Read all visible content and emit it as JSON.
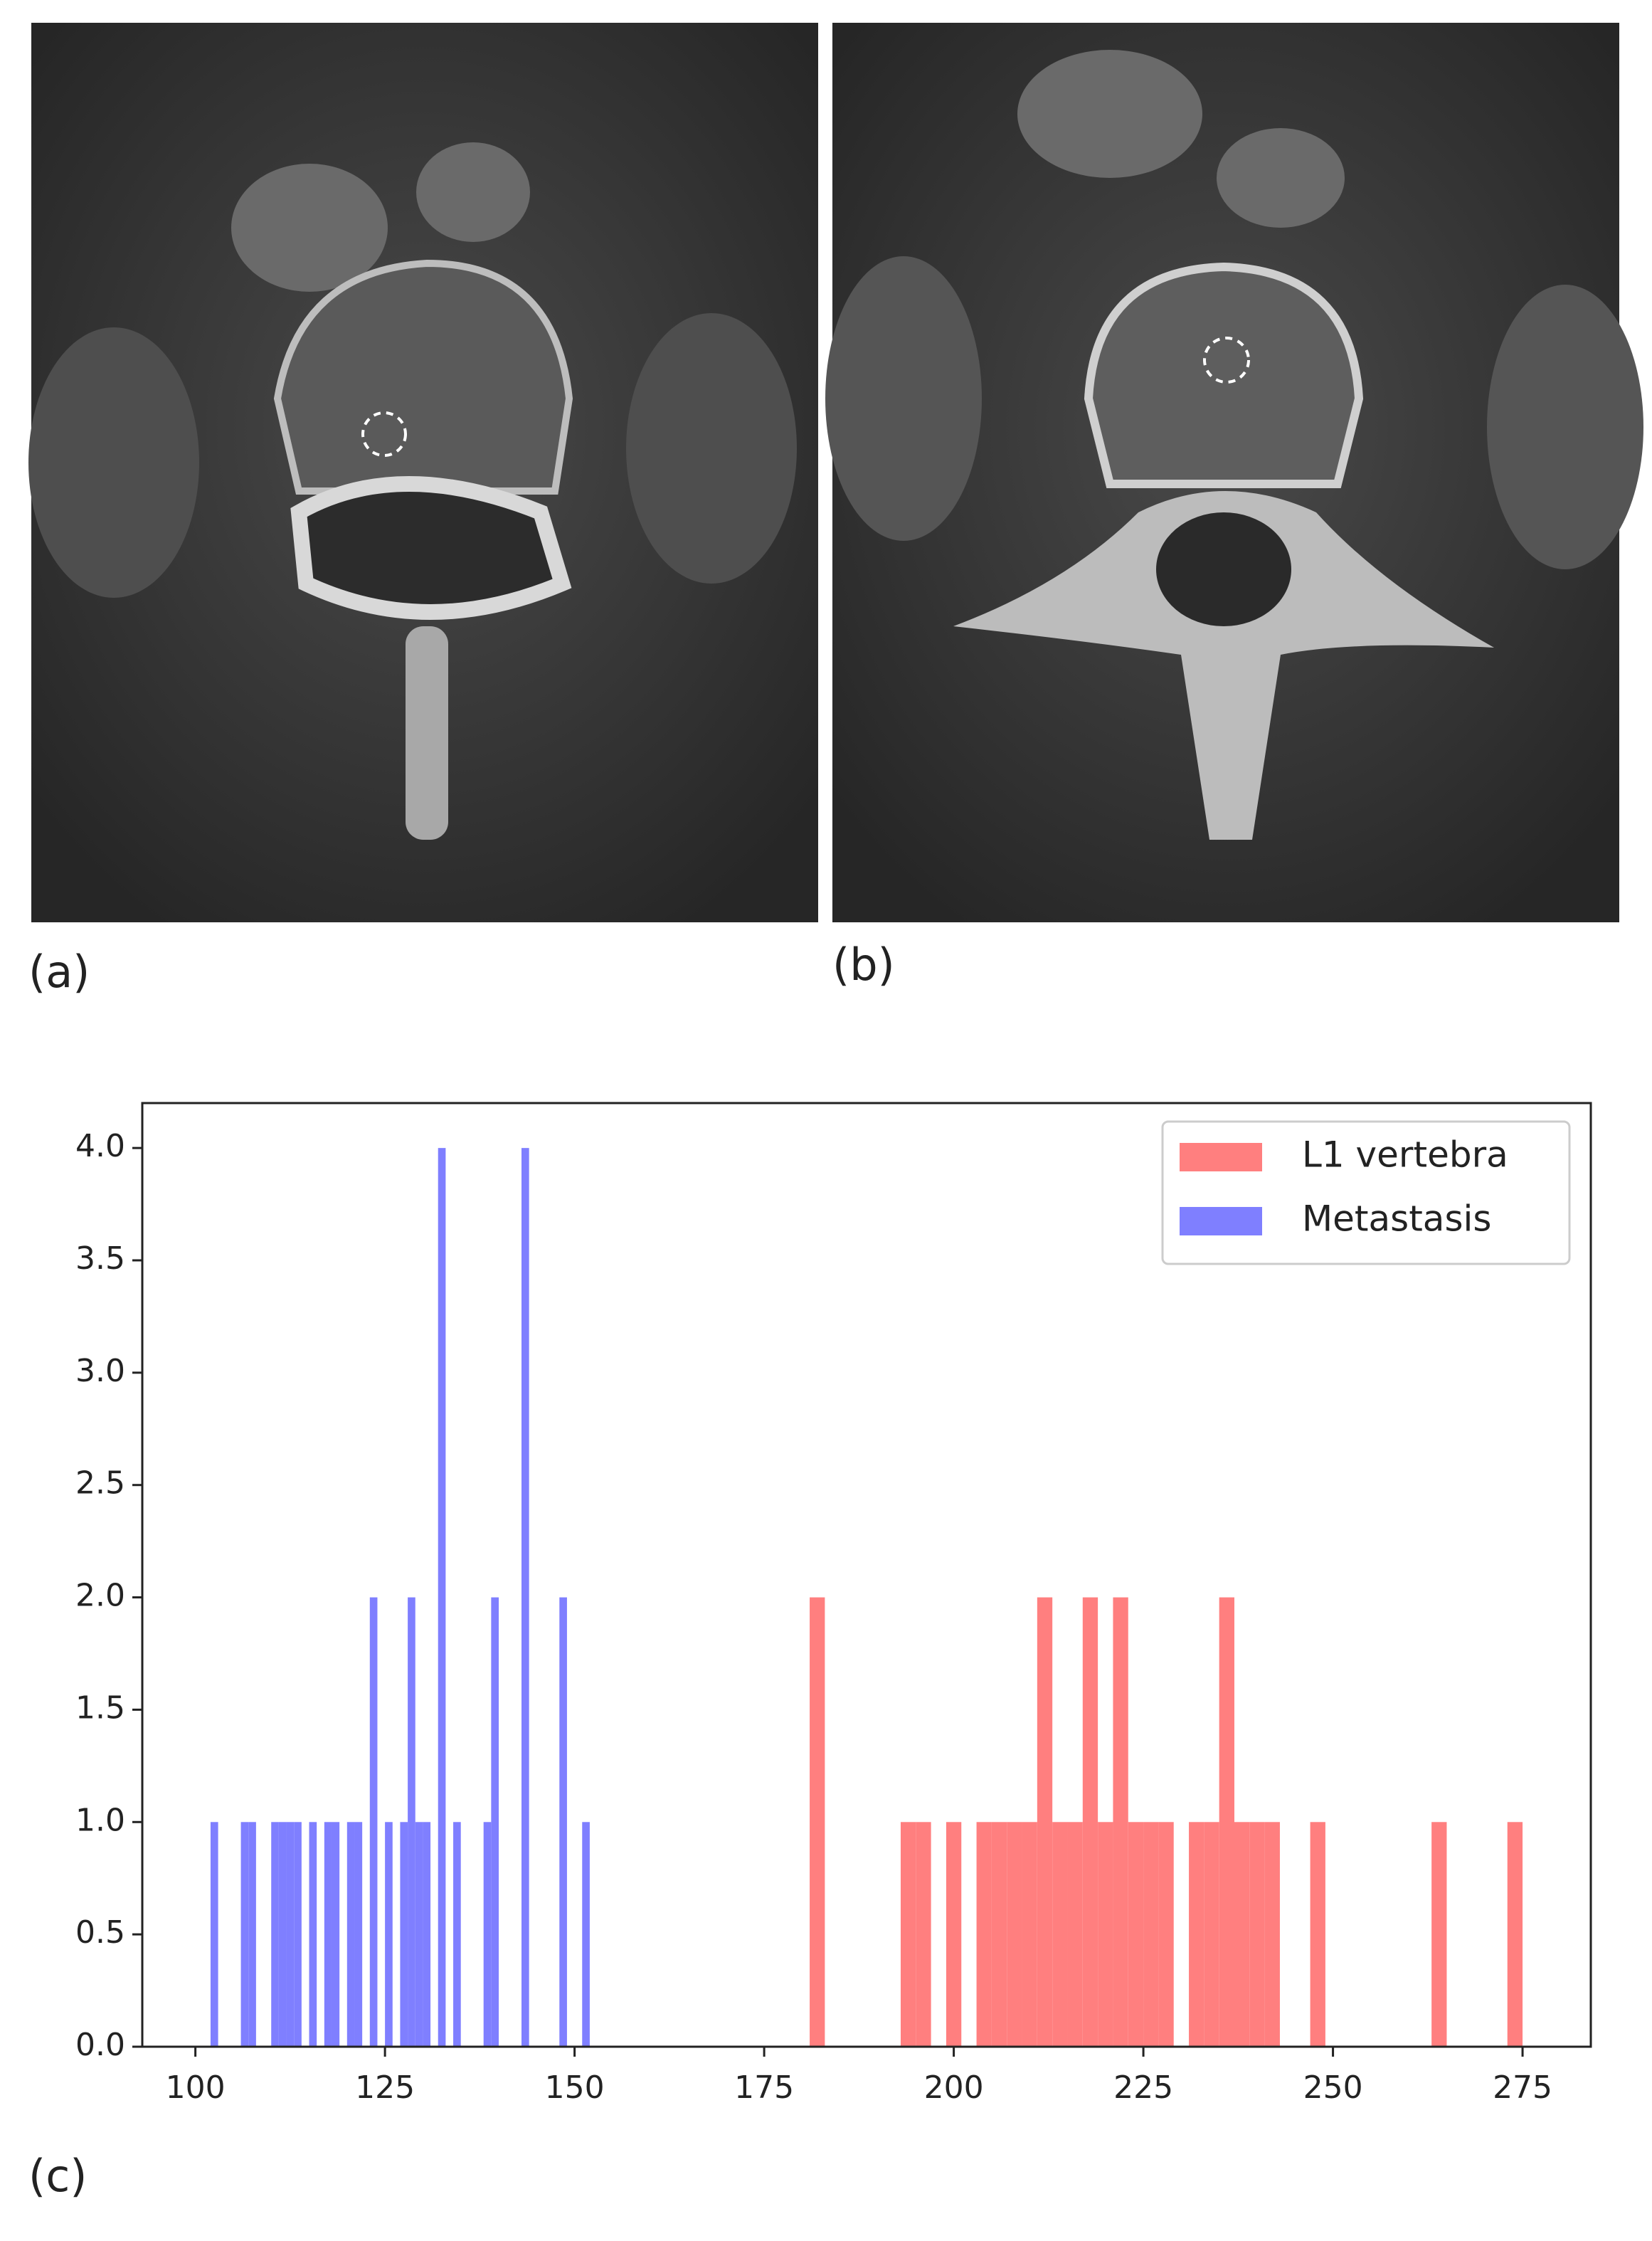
{
  "panels": [
    {
      "label": "(a)"
    },
    {
      "label": "(b)"
    }
  ],
  "chart_data": {
    "type": "histogram",
    "panel_label": "(c)",
    "xlim": [
      93,
      284
    ],
    "ylim": [
      0,
      4.2
    ],
    "xticks": [
      100,
      125,
      150,
      175,
      200,
      225,
      250,
      275
    ],
    "yticks": [
      {
        "value": 0,
        "label": "0.0"
      },
      0.5,
      {
        "value": 1,
        "label": "1.0"
      },
      1.5,
      {
        "value": 2,
        "label": "2.0"
      },
      2.5,
      {
        "value": 3,
        "label": "3.0"
      },
      3.5,
      {
        "value": 4,
        "label": "4.0"
      }
    ],
    "legend": "upper right",
    "series": [
      {
        "name": "L1 vertebra",
        "color": "#ff7f7f",
        "bins": [
          181,
          183,
          185,
          187,
          189,
          191,
          193,
          195,
          197,
          199,
          201,
          203,
          205,
          207,
          209,
          211,
          213,
          215,
          217,
          219,
          221,
          223,
          225,
          227,
          229,
          231,
          233,
          235,
          237,
          239,
          241,
          243,
          245,
          247,
          249,
          251,
          253,
          255,
          257,
          259,
          261,
          263,
          265,
          267,
          269,
          271,
          273,
          275
        ],
        "values": [
          2,
          0,
          0,
          0,
          0,
          0,
          1,
          1,
          0,
          1,
          0,
          1,
          1,
          1,
          1,
          2,
          1,
          1,
          2,
          1,
          2,
          1,
          1,
          1,
          0,
          1,
          1,
          2,
          1,
          1,
          1,
          0,
          0,
          1,
          0,
          0,
          0,
          0,
          0,
          0,
          0,
          1,
          0,
          0,
          0,
          0,
          1
        ]
      },
      {
        "name": "Metastasis",
        "color": "#7f7fff",
        "bins": [
          102,
          103,
          104,
          105,
          106,
          107,
          108,
          109,
          110,
          111,
          112,
          113,
          114,
          115,
          116,
          117,
          118,
          119,
          120,
          121,
          122,
          123,
          124,
          125,
          126,
          127,
          128,
          129,
          130,
          131,
          132,
          133,
          134,
          135,
          136,
          137,
          138,
          139,
          140,
          141,
          142,
          143,
          144,
          145,
          146,
          147,
          148,
          149,
          150,
          151,
          152
        ],
        "values": [
          1,
          0,
          0,
          0,
          1,
          1,
          0,
          0,
          1,
          1,
          1,
          1,
          0,
          1,
          0,
          1,
          1,
          0,
          1,
          1,
          0,
          2,
          0,
          1,
          0,
          1,
          2,
          1,
          1,
          0,
          4,
          0,
          1,
          0,
          0,
          0,
          1,
          2,
          0,
          0,
          0,
          4,
          0,
          0,
          0,
          0,
          2,
          0,
          0,
          1
        ]
      }
    ]
  }
}
